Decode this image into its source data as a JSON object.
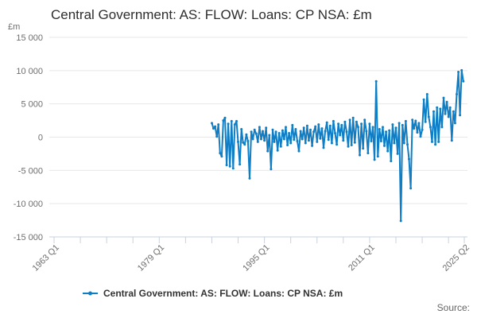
{
  "page": {
    "title": "Central Government: AS: FLOW: Loans: CP NSA: £m",
    "source_label": "Source:"
  },
  "axes": {
    "unit_label": "£m",
    "y_tick_labels": [
      "15 000",
      "10 000",
      "5 000",
      "0",
      "-5 000",
      "-10 000",
      "-15 000"
    ],
    "x_tick_labels": [
      "1963 Q1",
      "1979 Q1",
      "1995 Q1",
      "2011 Q1",
      "2025 Q2"
    ]
  },
  "legend": {
    "label": "Central Government: AS: FLOW: Loans: CP NSA: £m"
  },
  "colors": {
    "line": "#0F7EC5",
    "grid": "#e7e7e7",
    "axis": "#c8d2e0",
    "tick_text": "#6e6e6e",
    "title_text": "#2e2e2e"
  },
  "chart_data": {
    "type": "line",
    "title": "Central Government: AS: FLOW: Loans: CP NSA: £m",
    "xlabel": "",
    "ylabel": "£m",
    "ylim": [
      -15000,
      15000
    ],
    "y_ticks": [
      15000,
      10000,
      5000,
      0,
      -5000,
      -10000,
      -15000
    ],
    "grid": true,
    "legend_position": "bottom",
    "x_range_years": [
      1963.0,
      2025.4
    ],
    "x_minor_tick_step_years": 4,
    "x_labeled_ticks": [
      {
        "year": 1963.0,
        "label": "1963 Q1"
      },
      {
        "year": 1979.0,
        "label": "1979 Q1"
      },
      {
        "year": 1995.0,
        "label": "1995 Q1"
      },
      {
        "year": 2011.0,
        "label": "2011 Q1"
      },
      {
        "year": 2025.4,
        "label": "2025 Q2"
      }
    ],
    "series": [
      {
        "name": "Central Government: AS: FLOW: Loans: CP NSA: £m",
        "unit": "£m",
        "frequency": "quarterly",
        "start_year": 1987,
        "start_quarter": 1,
        "end_label": "2025 Q2",
        "values": [
          2100,
          1300,
          1600,
          100,
          1900,
          -2400,
          -2900,
          2500,
          2900,
          -4200,
          2000,
          -4400,
          2400,
          -4700,
          1900,
          2400,
          -700,
          -4100,
          1200,
          -800,
          -1100,
          400,
          -600,
          -6200,
          800,
          -300,
          1100,
          500,
          -700,
          1500,
          -300,
          900,
          -500,
          1400,
          -2100,
          300,
          -4800,
          1100,
          -700,
          800,
          -2000,
          600,
          -1400,
          1000,
          -300,
          1500,
          -1200,
          600,
          -900,
          1800,
          -400,
          1200,
          -600,
          -2100,
          900,
          -300,
          1400,
          -900,
          1700,
          -500,
          1100,
          -1300,
          800,
          1600,
          -700,
          1900,
          -200,
          1300,
          -1600,
          900,
          2200,
          -400,
          1700,
          -900,
          2400,
          600,
          -1100,
          2000,
          300,
          1800,
          -500,
          2300,
          800,
          -1400,
          2600,
          -1200,
          2900,
          -800,
          2300,
          1500,
          -2700,
          2000,
          -1700,
          2600,
          900,
          -2400,
          2000,
          -600,
          1500,
          -3400,
          8400,
          -2900,
          1200,
          -600,
          1500,
          -1300,
          800,
          -2100,
          1000,
          -3600,
          1900,
          -900,
          1400,
          -2500,
          2100,
          -12600,
          1800,
          -900,
          2400,
          -1100,
          -3300,
          -7700,
          2600,
          1300,
          2450,
          700,
          2100,
          100,
          1100,
          5650,
          2300,
          6450,
          3050,
          1500,
          -700,
          3850,
          -1100,
          4450,
          -700,
          4250,
          1500,
          5900,
          3500,
          5300,
          3050,
          4450,
          -500,
          3850,
          2100,
          6450,
          9800,
          3300,
          10050,
          8400
        ]
      }
    ]
  }
}
